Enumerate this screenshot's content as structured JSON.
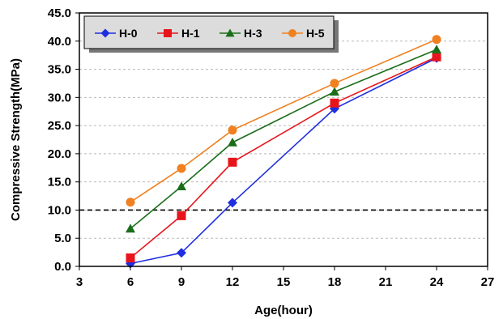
{
  "chart_data": {
    "type": "line",
    "xlabel": "Age(hour)",
    "ylabel": "Compressive Strength(MPa)",
    "xlim": [
      3,
      27
    ],
    "ylim": [
      0,
      45
    ],
    "xticks": [
      "3",
      "6",
      "9",
      "12",
      "15",
      "18",
      "21",
      "24",
      "27"
    ],
    "yticks": [
      "0.0",
      "5.0",
      "10.0",
      "15.0",
      "20.0",
      "25.0",
      "30.0",
      "35.0",
      "40.0",
      "45.0"
    ],
    "grid": "horizontal dashed",
    "reference_line": {
      "y": 10,
      "style": "dashed black"
    },
    "legend_position": "top-left",
    "x": [
      6,
      9,
      12,
      18,
      24
    ],
    "series": [
      {
        "name": "H-0",
        "color": "#1f2fe0",
        "marker": "diamond",
        "values": [
          0.5,
          2.4,
          11.3,
          28.0,
          37.0
        ]
      },
      {
        "name": "H-1",
        "color": "#e8141c",
        "marker": "square",
        "values": [
          1.5,
          9.0,
          18.5,
          29.0,
          37.2
        ]
      },
      {
        "name": "H-3",
        "color": "#1a6e1a",
        "marker": "triangle",
        "values": [
          6.7,
          14.2,
          22.0,
          31.0,
          38.5
        ]
      },
      {
        "name": "H-5",
        "color": "#f08020",
        "marker": "circle",
        "values": [
          11.4,
          17.4,
          24.2,
          32.5,
          40.3
        ]
      }
    ]
  }
}
